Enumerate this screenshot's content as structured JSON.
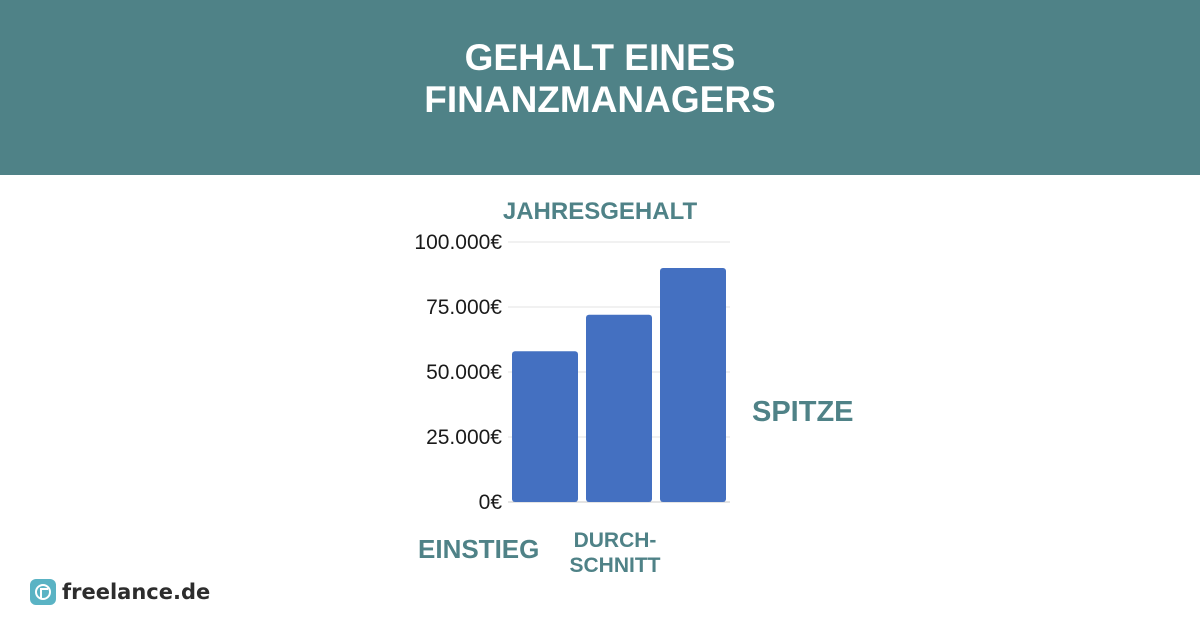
{
  "header": {
    "title_line1": "GEHALT EINES",
    "title_line2": "FINANZMANAGERS",
    "background": "#4f8287"
  },
  "chart_data": {
    "type": "bar",
    "title": "JAHRESGEHALT",
    "categories": [
      "EINSTIEG",
      "DURCH-SCHNITT",
      "SPITZE"
    ],
    "category_lines": [
      [
        "EINSTIEG"
      ],
      [
        "DURCH-",
        "SCHNITT"
      ],
      [
        "SPITZE"
      ]
    ],
    "values": [
      58000,
      72000,
      90000
    ],
    "ylim": [
      0,
      100000
    ],
    "yticks": [
      0,
      25000,
      50000,
      75000,
      100000
    ],
    "ytick_labels": [
      "0€",
      "25.000€",
      "50.000€",
      "75.000€",
      "100.000€"
    ],
    "grid": true,
    "colors": {
      "bar": "#4470c1",
      "label": "#4f8287",
      "grid": "#e3e3e3"
    }
  },
  "brand": {
    "name": "freelance.de",
    "icon": "freelance-logo-icon",
    "icon_color": "#5ab3c4"
  }
}
